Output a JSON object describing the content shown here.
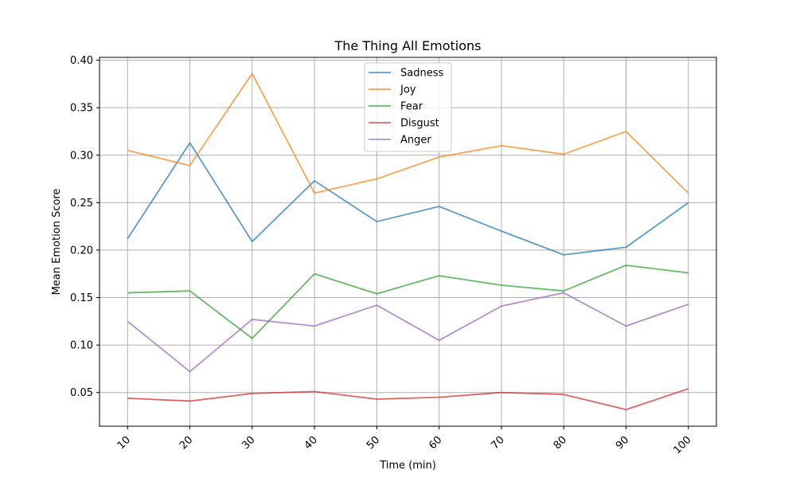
{
  "chart_data": {
    "type": "line",
    "title": "The Thing All Emotions",
    "xlabel": "Time (min)",
    "ylabel": "Mean Emotion Score",
    "x": [
      10,
      20,
      30,
      40,
      50,
      60,
      70,
      80,
      90,
      100
    ],
    "xticks": [
      "10",
      "20",
      "30",
      "40",
      "50",
      "60",
      "70",
      "80",
      "90",
      "100"
    ],
    "yticks": [
      "0.05",
      "0.10",
      "0.15",
      "0.20",
      "0.25",
      "0.30",
      "0.35",
      "0.40"
    ],
    "ytick_values": [
      0.05,
      0.1,
      0.15,
      0.2,
      0.25,
      0.3,
      0.35,
      0.4
    ],
    "xlim": [
      5.5,
      104.5
    ],
    "ylim": [
      0.0145,
      0.403
    ],
    "grid": true,
    "legend_position": "top-center",
    "series": [
      {
        "name": "Sadness",
        "color": "#1f77b4",
        "values": [
          0.212,
          0.313,
          0.209,
          0.273,
          0.23,
          0.246,
          0.22,
          0.195,
          0.203,
          0.25
        ]
      },
      {
        "name": "Joy",
        "color": "#ff7f0e",
        "values": [
          0.305,
          0.289,
          0.386,
          0.26,
          0.275,
          0.298,
          0.31,
          0.301,
          0.325,
          0.26
        ]
      },
      {
        "name": "Fear",
        "color": "#2ca02c",
        "values": [
          0.155,
          0.157,
          0.107,
          0.175,
          0.154,
          0.173,
          0.163,
          0.157,
          0.184,
          0.176
        ]
      },
      {
        "name": "Disgust",
        "color": "#d62728",
        "values": [
          0.044,
          0.041,
          0.049,
          0.051,
          0.043,
          0.045,
          0.05,
          0.048,
          0.032,
          0.054
        ]
      },
      {
        "name": "Anger",
        "color": "#9467bd",
        "values": [
          0.125,
          0.072,
          0.127,
          0.12,
          0.142,
          0.105,
          0.141,
          0.155,
          0.12,
          0.143
        ]
      }
    ]
  }
}
